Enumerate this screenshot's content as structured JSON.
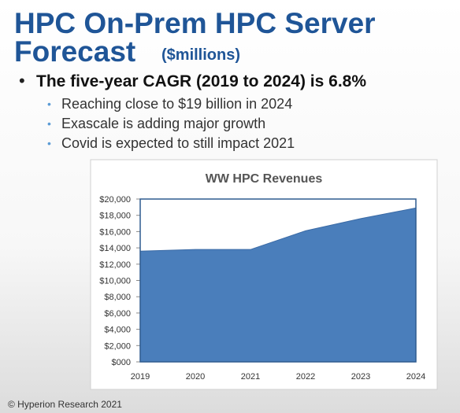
{
  "slide": {
    "title_line1": "HPC On-Prem HPC Server",
    "title_line2": "Forecast",
    "title_unit": "($millions)",
    "bullet": "The five-year CAGR (2019 to 2024) is 6.8%",
    "sub_bullets": [
      "Reaching close to $19 billion in 2024",
      "Exascale is adding major growth",
      "Covid is expected to still impact 2021"
    ],
    "footer": "© Hyperion Research 2021"
  },
  "chart_data": {
    "type": "area",
    "title": "WW HPC Revenues",
    "categories": [
      "2019",
      "2020",
      "2021",
      "2022",
      "2023",
      "2024"
    ],
    "values": [
      13600,
      13800,
      13800,
      16100,
      17600,
      18900
    ],
    "color": "#4a7ebb",
    "ylim": [
      0,
      20000
    ],
    "yticks": [
      {
        "value": 0,
        "label": "$000"
      },
      {
        "value": 2000,
        "label": "$2,000"
      },
      {
        "value": 4000,
        "label": "$4,000"
      },
      {
        "value": 6000,
        "label": "$6,000"
      },
      {
        "value": 8000,
        "label": "$8,000"
      },
      {
        "value": 10000,
        "label": "$10,000"
      },
      {
        "value": 12000,
        "label": "$12,000"
      },
      {
        "value": 14000,
        "label": "$14,000"
      },
      {
        "value": 16000,
        "label": "$16,000"
      },
      {
        "value": 18000,
        "label": "$18,000"
      },
      {
        "value": 20000,
        "label": "$20,000"
      }
    ]
  }
}
